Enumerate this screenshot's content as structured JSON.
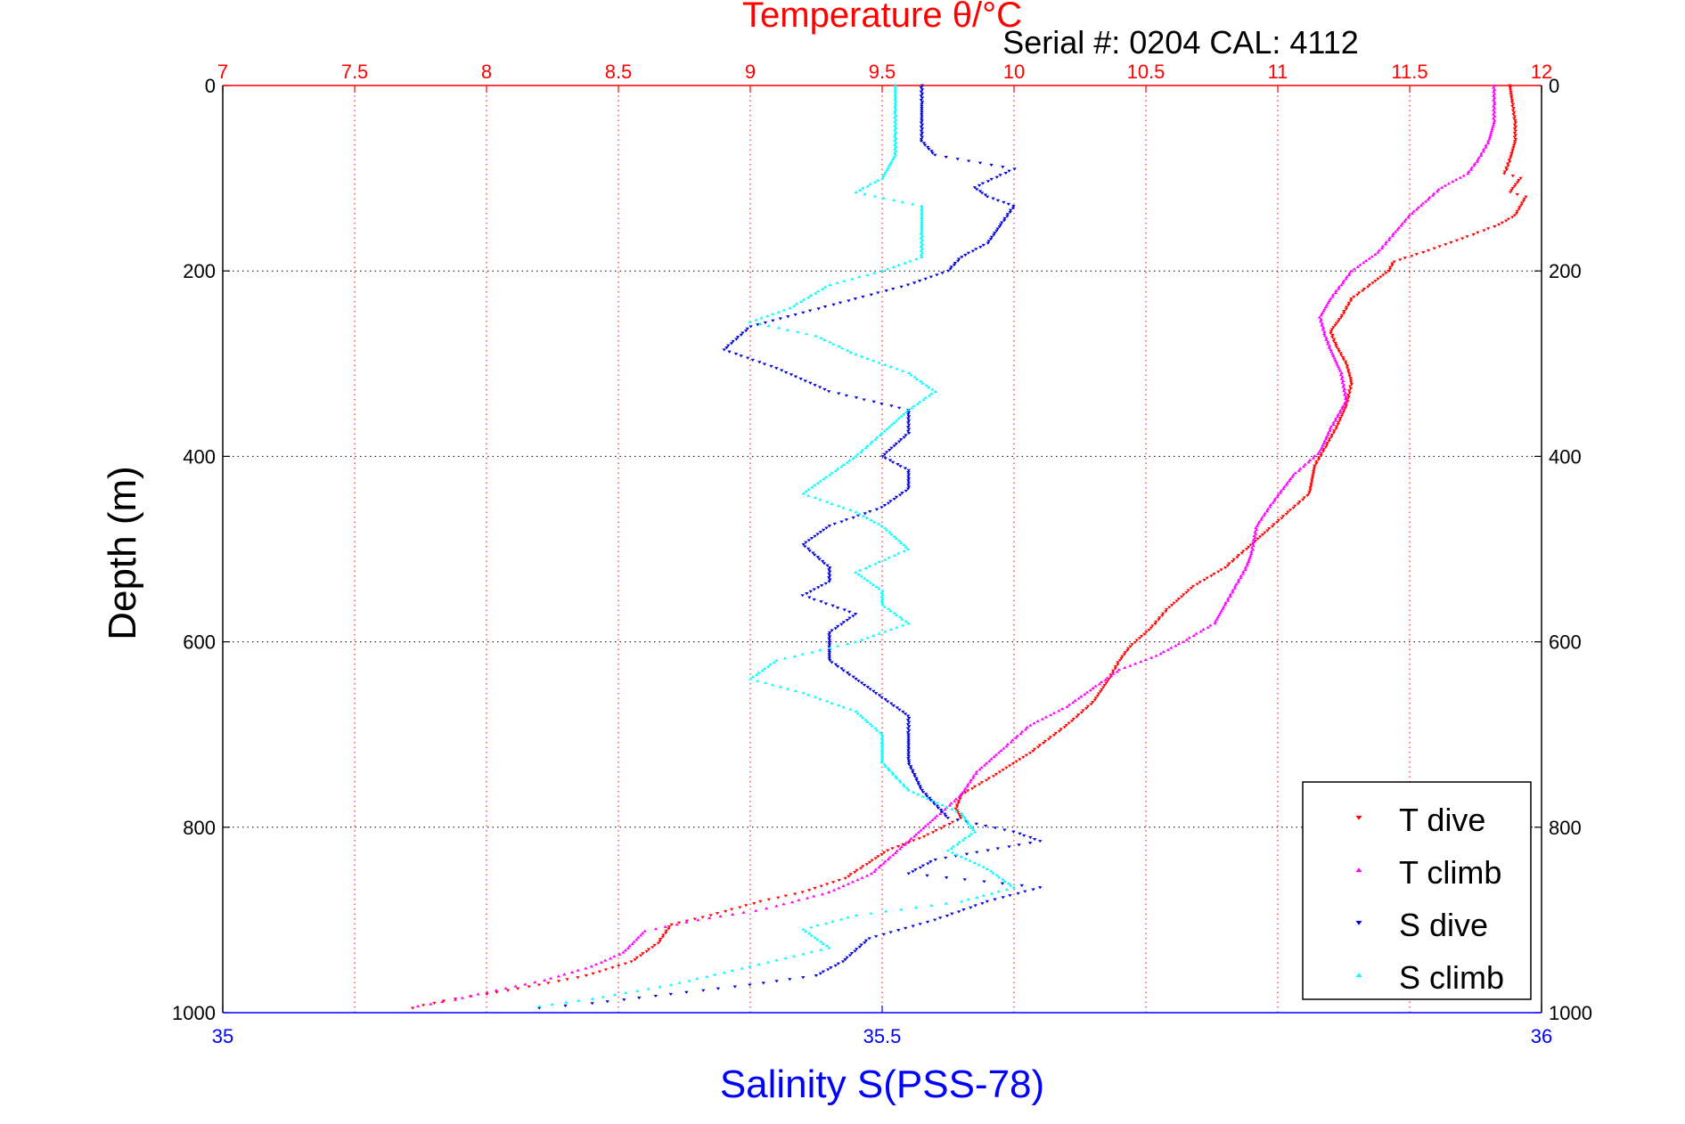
{
  "chart_data": {
    "type": "scatter",
    "title": "Temperature θ/°C",
    "subtitle": "Serial #: 0204  CAL: 4112",
    "ylabel": "Depth (m)",
    "xlabel_bottom": "Salinity S(PSS-78)",
    "temp_axis": {
      "range": [
        7,
        12
      ],
      "ticks": [
        7,
        7.5,
        8,
        8.5,
        9,
        9.5,
        10,
        10.5,
        11,
        11.5,
        12
      ],
      "tick_labels": [
        "7",
        "7.5",
        "8",
        "8.5",
        "9",
        "9.5",
        "10",
        "10.5",
        "11",
        "11.5",
        "12"
      ],
      "color": "#ff0000",
      "grid": true
    },
    "sal_axis": {
      "range": [
        35,
        36
      ],
      "ticks": [
        35,
        35.5,
        36
      ],
      "tick_labels": [
        "35",
        "35.5",
        "36"
      ],
      "color": "#0000ff"
    },
    "depth_axis": {
      "range": [
        0,
        1000
      ],
      "reversed": true,
      "ticks": [
        0,
        200,
        400,
        600,
        800,
        1000
      ],
      "tick_labels": [
        "0",
        "200",
        "400",
        "600",
        "800",
        "1000"
      ],
      "grid": true
    },
    "legend": {
      "placement": "bottom-right",
      "entries": [
        "T dive",
        "T climb",
        "S dive",
        "S climb"
      ]
    },
    "series": [
      {
        "name": "T dive",
        "axis": "temp",
        "color": "#ff0000",
        "marker": "triangle-down",
        "points": [
          [
            11.88,
            0
          ],
          [
            11.89,
            20
          ],
          [
            11.9,
            40
          ],
          [
            11.9,
            60
          ],
          [
            11.88,
            80
          ],
          [
            11.86,
            95
          ],
          [
            11.92,
            100
          ],
          [
            11.88,
            115
          ],
          [
            11.94,
            120
          ],
          [
            11.9,
            140
          ],
          [
            11.84,
            150
          ],
          [
            11.7,
            165
          ],
          [
            11.55,
            180
          ],
          [
            11.44,
            190
          ],
          [
            11.42,
            200
          ],
          [
            11.35,
            215
          ],
          [
            11.28,
            230
          ],
          [
            11.24,
            250
          ],
          [
            11.2,
            265
          ],
          [
            11.22,
            280
          ],
          [
            11.26,
            300
          ],
          [
            11.28,
            320
          ],
          [
            11.26,
            345
          ],
          [
            11.22,
            370
          ],
          [
            11.18,
            390
          ],
          [
            11.14,
            410
          ],
          [
            11.12,
            440
          ],
          [
            11.04,
            460
          ],
          [
            10.96,
            480
          ],
          [
            10.88,
            500
          ],
          [
            10.8,
            520
          ],
          [
            10.68,
            540
          ],
          [
            10.58,
            565
          ],
          [
            10.52,
            585
          ],
          [
            10.44,
            605
          ],
          [
            10.4,
            620
          ],
          [
            10.36,
            640
          ],
          [
            10.3,
            665
          ],
          [
            10.2,
            690
          ],
          [
            10.06,
            720
          ],
          [
            9.92,
            745
          ],
          [
            9.8,
            765
          ],
          [
            9.78,
            780
          ],
          [
            9.8,
            790
          ],
          [
            9.66,
            810
          ],
          [
            9.52,
            825
          ],
          [
            9.44,
            840
          ],
          [
            9.36,
            855
          ],
          [
            9.2,
            870
          ],
          [
            9.04,
            880
          ],
          [
            8.85,
            895
          ],
          [
            8.7,
            905
          ],
          [
            8.65,
            925
          ],
          [
            8.55,
            945
          ],
          [
            8.38,
            960
          ],
          [
            8.2,
            970
          ],
          [
            8.0,
            980
          ],
          [
            7.88,
            985
          ],
          [
            7.76,
            992
          ],
          [
            7.72,
            995
          ]
        ]
      },
      {
        "name": "T climb",
        "axis": "temp",
        "color": "#ff00ff",
        "marker": "triangle-up",
        "points": [
          [
            11.82,
            0
          ],
          [
            11.82,
            20
          ],
          [
            11.82,
            40
          ],
          [
            11.8,
            60
          ],
          [
            11.76,
            80
          ],
          [
            11.72,
            95
          ],
          [
            11.62,
            110
          ],
          [
            11.56,
            125
          ],
          [
            11.5,
            140
          ],
          [
            11.44,
            160
          ],
          [
            11.38,
            180
          ],
          [
            11.28,
            200
          ],
          [
            11.24,
            215
          ],
          [
            11.2,
            230
          ],
          [
            11.16,
            250
          ],
          [
            11.18,
            270
          ],
          [
            11.2,
            285
          ],
          [
            11.24,
            310
          ],
          [
            11.26,
            340
          ],
          [
            11.2,
            370
          ],
          [
            11.16,
            395
          ],
          [
            11.06,
            420
          ],
          [
            10.98,
            450
          ],
          [
            10.92,
            475
          ],
          [
            10.9,
            505
          ],
          [
            10.88,
            520
          ],
          [
            10.84,
            540
          ],
          [
            10.8,
            560
          ],
          [
            10.76,
            580
          ],
          [
            10.64,
            600
          ],
          [
            10.54,
            615
          ],
          [
            10.4,
            630
          ],
          [
            10.3,
            650
          ],
          [
            10.2,
            670
          ],
          [
            10.06,
            690
          ],
          [
            9.96,
            715
          ],
          [
            9.86,
            740
          ],
          [
            9.8,
            765
          ],
          [
            9.7,
            790
          ],
          [
            9.62,
            810
          ],
          [
            9.54,
            830
          ],
          [
            9.46,
            850
          ],
          [
            9.3,
            870
          ],
          [
            9.1,
            885
          ],
          [
            9.02,
            890
          ],
          [
            8.8,
            900
          ],
          [
            8.6,
            912
          ],
          [
            8.52,
            935
          ],
          [
            8.4,
            950
          ],
          [
            8.22,
            965
          ],
          [
            8.0,
            978
          ],
          [
            7.88,
            986
          ],
          [
            7.74,
            993
          ]
        ]
      },
      {
        "name": "S dive",
        "axis": "sal",
        "color": "#0000dd",
        "marker": "triangle-down",
        "points": [
          [
            35.53,
            0
          ],
          [
            35.53,
            20
          ],
          [
            35.53,
            40
          ],
          [
            35.53,
            60
          ],
          [
            35.54,
            75
          ],
          [
            35.6,
            90
          ],
          [
            35.57,
            110
          ],
          [
            35.58,
            120
          ],
          [
            35.6,
            130
          ],
          [
            35.59,
            150
          ],
          [
            35.58,
            170
          ],
          [
            35.56,
            185
          ],
          [
            35.55,
            200
          ],
          [
            35.52,
            215
          ],
          [
            35.48,
            230
          ],
          [
            35.44,
            245
          ],
          [
            35.4,
            260
          ],
          [
            35.38,
            285
          ],
          [
            35.42,
            305
          ],
          [
            35.46,
            330
          ],
          [
            35.52,
            350
          ],
          [
            35.52,
            375
          ],
          [
            35.5,
            400
          ],
          [
            35.52,
            415
          ],
          [
            35.52,
            435
          ],
          [
            35.5,
            455
          ],
          [
            35.46,
            475
          ],
          [
            35.44,
            495
          ],
          [
            35.46,
            520
          ],
          [
            35.46,
            535
          ],
          [
            35.44,
            550
          ],
          [
            35.48,
            570
          ],
          [
            35.46,
            590
          ],
          [
            35.46,
            620
          ],
          [
            35.48,
            640
          ],
          [
            35.5,
            660
          ],
          [
            35.52,
            680
          ],
          [
            35.52,
            700
          ],
          [
            35.52,
            730
          ],
          [
            35.53,
            760
          ],
          [
            35.55,
            790
          ],
          [
            35.6,
            805
          ],
          [
            35.62,
            815
          ],
          [
            35.58,
            825
          ],
          [
            35.54,
            835
          ],
          [
            35.52,
            850
          ],
          [
            35.62,
            865
          ],
          [
            35.58,
            880
          ],
          [
            35.54,
            900
          ],
          [
            35.49,
            920
          ],
          [
            35.47,
            945
          ],
          [
            35.45,
            960
          ],
          [
            35.4,
            970
          ],
          [
            35.34,
            980
          ],
          [
            35.28,
            990
          ],
          [
            35.24,
            995
          ]
        ]
      },
      {
        "name": "S climb",
        "axis": "sal",
        "color": "#00ffff",
        "marker": "triangle-up",
        "points": [
          [
            35.51,
            0
          ],
          [
            35.51,
            30
          ],
          [
            35.51,
            55
          ],
          [
            35.51,
            75
          ],
          [
            35.5,
            100
          ],
          [
            35.48,
            115
          ],
          [
            35.53,
            130
          ],
          [
            35.53,
            160
          ],
          [
            35.53,
            185
          ],
          [
            35.5,
            200
          ],
          [
            35.46,
            215
          ],
          [
            35.43,
            240
          ],
          [
            35.4,
            255
          ],
          [
            35.45,
            270
          ],
          [
            35.48,
            290
          ],
          [
            35.52,
            310
          ],
          [
            35.54,
            330
          ],
          [
            35.52,
            350
          ],
          [
            35.5,
            375
          ],
          [
            35.48,
            400
          ],
          [
            35.46,
            420
          ],
          [
            35.44,
            440
          ],
          [
            35.48,
            460
          ],
          [
            35.5,
            475
          ],
          [
            35.52,
            500
          ],
          [
            35.48,
            525
          ],
          [
            35.5,
            545
          ],
          [
            35.5,
            560
          ],
          [
            35.52,
            580
          ],
          [
            35.48,
            600
          ],
          [
            35.42,
            620
          ],
          [
            35.4,
            640
          ],
          [
            35.44,
            655
          ],
          [
            35.48,
            675
          ],
          [
            35.5,
            700
          ],
          [
            35.5,
            730
          ],
          [
            35.52,
            760
          ],
          [
            35.56,
            785
          ],
          [
            35.57,
            805
          ],
          [
            35.55,
            825
          ],
          [
            35.58,
            845
          ],
          [
            35.6,
            865
          ],
          [
            35.56,
            880
          ],
          [
            35.48,
            895
          ],
          [
            35.44,
            910
          ],
          [
            35.46,
            930
          ],
          [
            35.4,
            950
          ],
          [
            35.34,
            970
          ],
          [
            35.28,
            985
          ],
          [
            35.24,
            993
          ]
        ]
      }
    ]
  }
}
